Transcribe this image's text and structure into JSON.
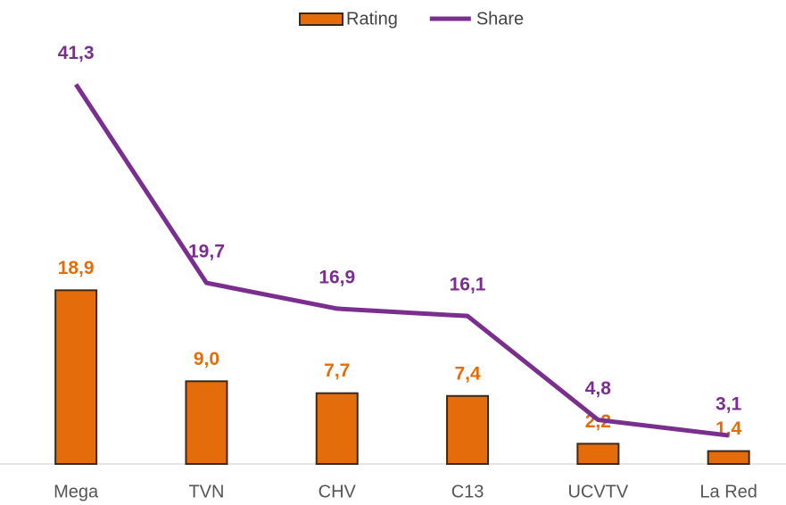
{
  "chart_data": {
    "type": "bar",
    "categories": [
      "Mega",
      "TVN",
      "CHV",
      "C13",
      "UCVTV",
      "La Red"
    ],
    "series": [
      {
        "name": "Rating",
        "type": "bar",
        "color": "#e46c0a",
        "values": [
          18.9,
          9.0,
          7.7,
          7.4,
          2.2,
          1.4
        ],
        "value_labels": [
          "18,9",
          "9,0",
          "7,7",
          "7,4",
          "2,2",
          "1,4"
        ]
      },
      {
        "name": "Share",
        "type": "line",
        "color": "#7a2f8f",
        "values": [
          41.3,
          19.7,
          16.9,
          16.1,
          4.8,
          3.1
        ],
        "value_labels": [
          "41,3",
          "19,7",
          "16,9",
          "16,1",
          "4,8",
          "3,1"
        ]
      }
    ],
    "ylim": [
      0,
      50
    ],
    "legend": "top"
  }
}
